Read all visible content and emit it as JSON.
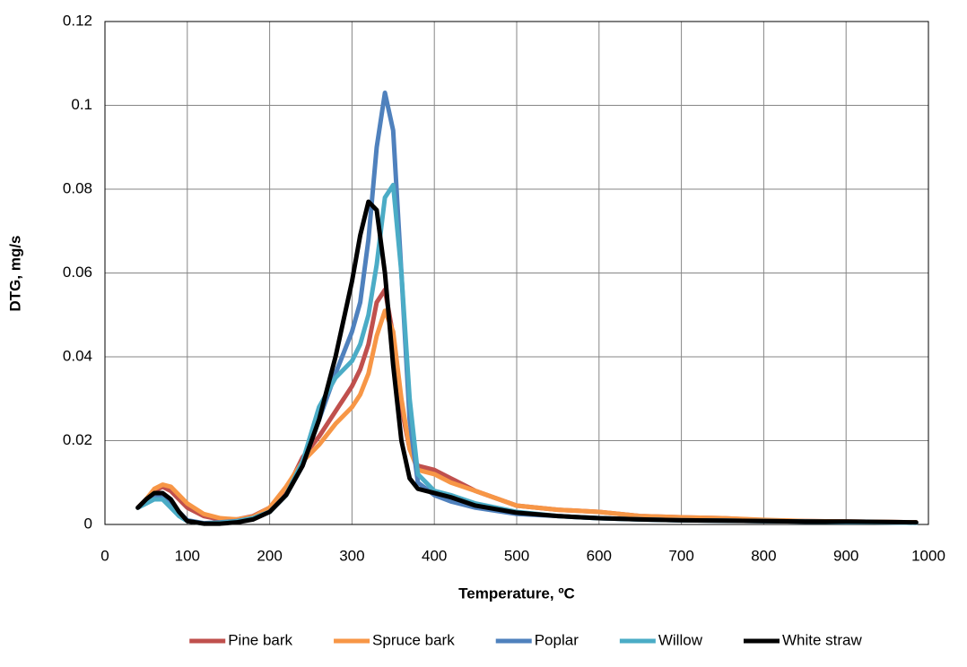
{
  "chart_data": {
    "type": "line",
    "x_label": "Temperature, ºC",
    "y_label": "DTG, mg/s",
    "x": [
      40,
      50,
      60,
      70,
      80,
      90,
      100,
      120,
      140,
      160,
      180,
      200,
      220,
      240,
      260,
      280,
      300,
      310,
      320,
      330,
      340,
      350,
      360,
      370,
      380,
      400,
      420,
      450,
      500,
      550,
      600,
      650,
      700,
      750,
      800,
      850,
      900,
      950,
      985
    ],
    "series": [
      {
        "name": "Pine bark",
        "color": "#c0504d",
        "values": [
          0.004,
          0.006,
          0.008,
          0.009,
          0.008,
          0.006,
          0.004,
          0.002,
          0.0012,
          0.0012,
          0.002,
          0.004,
          0.008,
          0.016,
          0.021,
          0.027,
          0.033,
          0.037,
          0.043,
          0.053,
          0.056,
          0.045,
          0.028,
          0.018,
          0.014,
          0.013,
          0.011,
          0.008,
          0.0045,
          0.0035,
          0.003,
          0.002,
          0.0017,
          0.0015,
          0.001,
          0.0008,
          0.0007,
          0.0006,
          0.0005
        ]
      },
      {
        "name": "Spruce bark",
        "color": "#f79646",
        "values": [
          0.004,
          0.006,
          0.0085,
          0.0095,
          0.009,
          0.007,
          0.005,
          0.0025,
          0.0015,
          0.0012,
          0.0018,
          0.004,
          0.009,
          0.015,
          0.019,
          0.024,
          0.028,
          0.031,
          0.036,
          0.045,
          0.051,
          0.046,
          0.03,
          0.018,
          0.013,
          0.012,
          0.01,
          0.008,
          0.0045,
          0.0035,
          0.003,
          0.002,
          0.0017,
          0.0015,
          0.0011,
          0.0008,
          0.0007,
          0.0006,
          0.0005
        ]
      },
      {
        "name": "Poplar",
        "color": "#4f81bd",
        "values": [
          0.004,
          0.0055,
          0.007,
          0.007,
          0.005,
          0.003,
          0.001,
          0.0003,
          0.0005,
          0.0008,
          0.0015,
          0.003,
          0.007,
          0.014,
          0.025,
          0.036,
          0.046,
          0.053,
          0.068,
          0.09,
          0.103,
          0.094,
          0.06,
          0.025,
          0.01,
          0.007,
          0.0055,
          0.004,
          0.0025,
          0.002,
          0.0015,
          0.0012,
          0.001,
          0.0009,
          0.0008,
          0.0007,
          0.0006,
          0.0005,
          0.0004
        ]
      },
      {
        "name": "Willow",
        "color": "#4bacc6",
        "values": [
          0.004,
          0.005,
          0.006,
          0.006,
          0.004,
          0.002,
          0.0008,
          0.0002,
          0.0004,
          0.0007,
          0.0015,
          0.003,
          0.007,
          0.015,
          0.028,
          0.035,
          0.039,
          0.043,
          0.05,
          0.062,
          0.078,
          0.081,
          0.06,
          0.03,
          0.012,
          0.008,
          0.007,
          0.005,
          0.003,
          0.002,
          0.0015,
          0.0012,
          0.001,
          0.0009,
          0.0008,
          0.0007,
          0.0006,
          0.0005,
          0.0004
        ]
      },
      {
        "name": "White straw",
        "color": "#000000",
        "values": [
          0.004,
          0.006,
          0.0075,
          0.0075,
          0.006,
          0.003,
          0.0008,
          0.0002,
          0.0002,
          0.0005,
          0.0012,
          0.003,
          0.007,
          0.014,
          0.025,
          0.04,
          0.058,
          0.069,
          0.077,
          0.075,
          0.06,
          0.038,
          0.02,
          0.011,
          0.0085,
          0.0075,
          0.0065,
          0.0045,
          0.0028,
          0.002,
          0.0015,
          0.0012,
          0.001,
          0.0009,
          0.0008,
          0.0007,
          0.0007,
          0.0006,
          0.0005
        ]
      }
    ],
    "xlim": [
      0,
      1000
    ],
    "xticks": [
      0,
      100,
      200,
      300,
      400,
      500,
      600,
      700,
      800,
      900,
      1000
    ],
    "ylim": [
      0,
      0.12
    ],
    "yticks": [
      0,
      0.02,
      0.04,
      0.06,
      0.08,
      0.1,
      0.12
    ],
    "grid": true,
    "legend": "bottom"
  }
}
